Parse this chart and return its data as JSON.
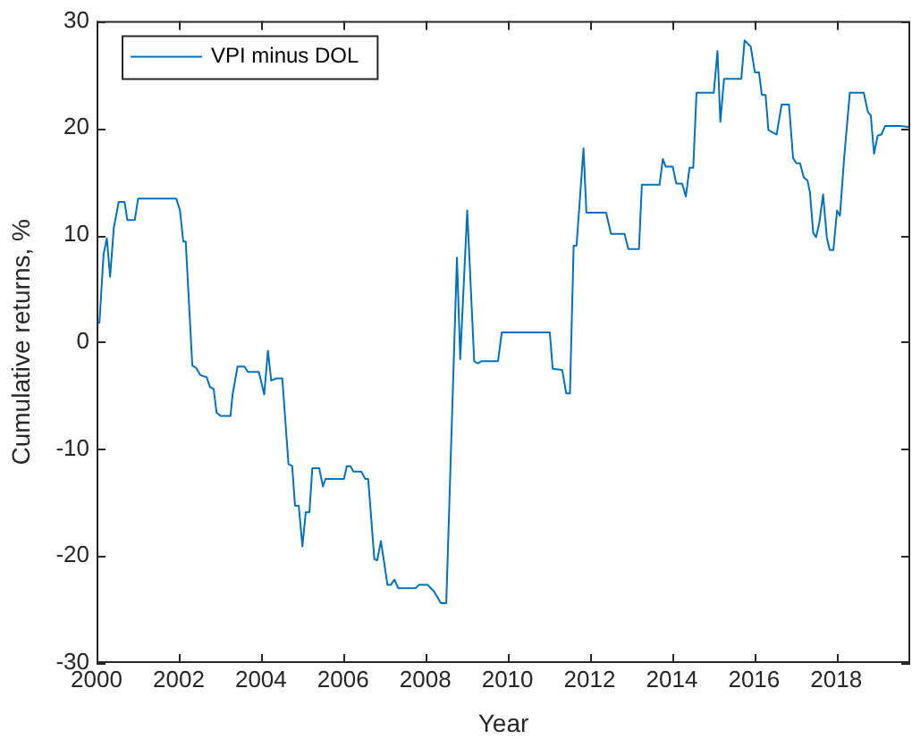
{
  "chart_data": {
    "type": "line",
    "xlabel": "Year",
    "ylabel": "Cumulative returns, %",
    "legend": "top left",
    "grid": false,
    "marker": "none",
    "line_style": "solid",
    "xlim": [
      2000,
      2019.8
    ],
    "xticks": [
      2000,
      2002,
      2004,
      2006,
      2008,
      2010,
      2012,
      2014,
      2016,
      2018
    ],
    "ylim": [
      -30,
      30
    ],
    "yticks": [
      -30,
      -20,
      -10,
      0,
      10,
      20,
      30
    ],
    "series": [
      {
        "name": "VPI minus DOL",
        "color": "#0072bd",
        "x": [
          2000.0,
          2000.07,
          2000.17,
          2000.25,
          2000.33,
          2000.42,
          2000.54,
          2000.68,
          2000.75,
          2000.93,
          2001.01,
          2001.94,
          2002.03,
          2002.11,
          2002.17,
          2002.33,
          2002.42,
          2002.53,
          2002.68,
          2002.76,
          2002.85,
          2002.92,
          2003.02,
          2003.26,
          2003.31,
          2003.43,
          2003.6,
          2003.68,
          2003.95,
          2004.08,
          2004.17,
          2004.25,
          2004.37,
          2004.52,
          2004.67,
          2004.76,
          2004.83,
          2004.92,
          2005.01,
          2005.09,
          2005.18,
          2005.25,
          2005.42,
          2005.51,
          2005.57,
          2006.02,
          2006.09,
          2006.18,
          2006.25,
          2006.44,
          2006.54,
          2006.61,
          2006.76,
          2006.83,
          2006.92,
          2007.08,
          2007.16,
          2007.25,
          2007.34,
          2007.77,
          2007.84,
          2008.06,
          2008.21,
          2008.38,
          2008.51,
          2008.77,
          2008.85,
          2009.02,
          2009.19,
          2009.28,
          2009.36,
          2009.77,
          2009.86,
          2011.03,
          2011.1,
          2011.33,
          2011.43,
          2011.52,
          2011.61,
          2011.68,
          2011.85,
          2011.92,
          2012.4,
          2012.52,
          2012.85,
          2012.94,
          2013.2,
          2013.27,
          2013.7,
          2013.78,
          2013.85,
          2014.02,
          2014.11,
          2014.25,
          2014.34,
          2014.43,
          2014.52,
          2014.6,
          2015.02,
          2015.11,
          2015.18,
          2015.27,
          2015.69,
          2015.77,
          2015.92,
          2016.02,
          2016.12,
          2016.19,
          2016.28,
          2016.35,
          2016.55,
          2016.67,
          2016.85,
          2016.95,
          2017.03,
          2017.12,
          2017.21,
          2017.3,
          2017.36,
          2017.44,
          2017.51,
          2017.59,
          2017.68,
          2017.77,
          2017.84,
          2017.93,
          2018.02,
          2018.09,
          2018.19,
          2018.33,
          2018.67,
          2018.77,
          2018.84,
          2018.92,
          2019.01,
          2019.1,
          2019.19,
          2019.56,
          2019.78
        ],
        "values": [
          1.8,
          1.8,
          8.2,
          9.7,
          6.1,
          10.7,
          13.1,
          13.1,
          11.4,
          11.4,
          13.4,
          13.4,
          12.3,
          9.4,
          9.4,
          -2.2,
          -2.4,
          -3.1,
          -3.3,
          -4.2,
          -4.4,
          -6.6,
          -6.9,
          -6.9,
          -4.9,
          -2.3,
          -2.3,
          -2.8,
          -2.8,
          -4.9,
          -0.8,
          -3.6,
          -3.4,
          -3.4,
          -11.4,
          -11.6,
          -15.3,
          -15.3,
          -19.1,
          -15.9,
          -15.9,
          -11.8,
          -11.8,
          -13.5,
          -12.8,
          -12.8,
          -11.6,
          -11.6,
          -12.1,
          -12.1,
          -12.8,
          -12.8,
          -20.3,
          -20.4,
          -18.6,
          -22.7,
          -22.7,
          -22.2,
          -23.0,
          -23.0,
          -22.7,
          -22.7,
          -23.3,
          -24.4,
          -24.4,
          7.9,
          -1.6,
          12.3,
          -1.8,
          -2.0,
          -1.8,
          -1.8,
          0.9,
          0.9,
          -2.5,
          -2.6,
          -4.8,
          -4.8,
          9.0,
          9.0,
          18.1,
          12.1,
          12.1,
          10.1,
          10.1,
          8.7,
          8.7,
          14.7,
          14.7,
          17.1,
          16.4,
          16.4,
          14.8,
          14.8,
          13.6,
          16.3,
          16.3,
          23.3,
          23.3,
          27.2,
          20.6,
          24.6,
          24.6,
          28.2,
          27.6,
          25.2,
          25.2,
          23.1,
          23.1,
          19.8,
          19.4,
          22.2,
          22.2,
          17.2,
          16.7,
          16.7,
          15.4,
          15.1,
          14.0,
          10.2,
          9.8,
          11.2,
          13.8,
          9.8,
          8.6,
          8.6,
          12.3,
          11.8,
          17.1,
          23.3,
          23.3,
          21.5,
          21.2,
          17.6,
          19.3,
          19.4,
          20.2,
          20.2,
          20.1
        ]
      }
    ]
  }
}
